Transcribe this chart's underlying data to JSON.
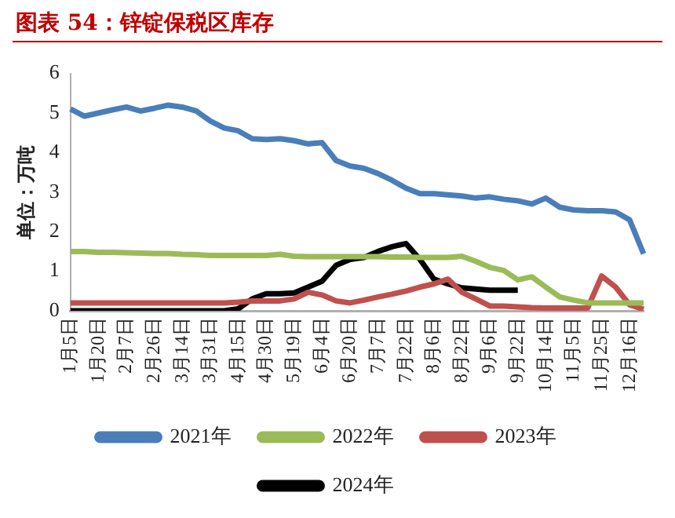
{
  "chart_data": {
    "type": "line",
    "title": "图表 54：锌锭保税区库存",
    "ylabel": "单位：万吨",
    "categories": [
      "1月5日",
      null,
      "1月20日",
      null,
      "2月7日",
      null,
      "2月26日",
      null,
      "3月14日",
      null,
      "3月31日",
      null,
      "4月15日",
      null,
      "4月30日",
      null,
      "5月19日",
      null,
      "6月4日",
      null,
      "6月20日",
      null,
      "7月7日",
      null,
      "7月22日",
      null,
      "8月6日",
      null,
      "8月22日",
      null,
      "9月6日",
      null,
      "9月22日",
      null,
      "10月14日",
      null,
      "11月5日",
      null,
      "11月25日",
      null,
      "12月16日",
      null
    ],
    "series": [
      {
        "name": "2021年",
        "color": "#4a7ebb",
        "values": [
          5.1,
          4.92,
          5.0,
          5.08,
          5.15,
          5.05,
          5.12,
          5.2,
          5.15,
          5.05,
          4.8,
          4.62,
          4.55,
          4.35,
          4.33,
          4.35,
          4.3,
          4.22,
          4.25,
          3.8,
          3.66,
          3.6,
          3.47,
          3.3,
          3.1,
          2.96,
          2.96,
          2.93,
          2.9,
          2.85,
          2.88,
          2.82,
          2.78,
          2.7,
          2.85,
          2.62,
          2.55,
          2.53,
          2.53,
          2.5,
          2.3,
          1.44
        ]
      },
      {
        "name": "2022年",
        "color": "#9bbb59",
        "values": [
          1.5,
          1.5,
          1.48,
          1.48,
          1.47,
          1.46,
          1.45,
          1.45,
          1.43,
          1.42,
          1.4,
          1.4,
          1.4,
          1.4,
          1.4,
          1.43,
          1.38,
          1.37,
          1.37,
          1.37,
          1.37,
          1.37,
          1.37,
          1.36,
          1.36,
          1.35,
          1.35,
          1.35,
          1.38,
          1.25,
          1.1,
          1.02,
          0.78,
          0.86,
          0.6,
          0.35,
          0.27,
          0.2,
          0.2,
          0.2,
          0.2,
          0.2
        ]
      },
      {
        "name": "2023年",
        "color": "#c0504d",
        "values": [
          0.2,
          0.2,
          0.2,
          0.2,
          0.2,
          0.2,
          0.2,
          0.2,
          0.2,
          0.2,
          0.2,
          0.2,
          0.22,
          0.25,
          0.25,
          0.25,
          0.3,
          0.47,
          0.4,
          0.25,
          0.2,
          0.27,
          0.35,
          0.42,
          0.5,
          0.6,
          0.68,
          0.8,
          0.47,
          0.3,
          0.12,
          0.12,
          0.1,
          0.08,
          0.07,
          0.07,
          0.07,
          0.07,
          0.88,
          0.6,
          0.15,
          0.04
        ]
      },
      {
        "name": "2024年",
        "color": "#000000",
        "values": [
          0,
          0,
          0,
          0,
          0,
          0,
          0,
          0,
          0,
          0,
          0,
          0,
          0.05,
          0.3,
          0.43,
          0.43,
          0.45,
          0.6,
          0.75,
          1.15,
          1.3,
          1.35,
          1.5,
          1.62,
          1.7,
          1.3,
          0.8,
          0.68,
          0.58,
          0.55,
          0.52,
          0.52,
          0.52,
          null,
          null,
          null,
          null,
          null,
          null,
          null,
          null,
          null
        ]
      }
    ],
    "ylim": [
      0,
      6
    ],
    "yticks": [
      0,
      1,
      2,
      3,
      4,
      5,
      6
    ],
    "grid": false,
    "legend": "bottom",
    "marker": "none",
    "line_style": "solid"
  }
}
